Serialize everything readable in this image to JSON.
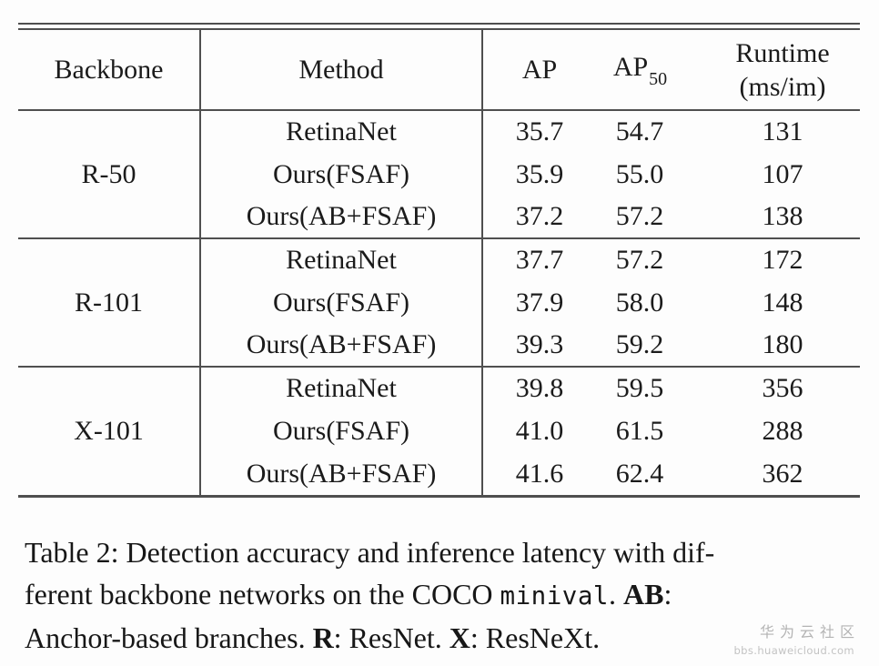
{
  "table": {
    "headers": {
      "backbone": "Backbone",
      "method": "Method",
      "ap": "AP",
      "ap50_base": "AP",
      "ap50_sub": "50",
      "runtime_line1": "Runtime",
      "runtime_line2": "(ms/im)"
    },
    "groups": [
      {
        "backbone": "R-50",
        "rows": [
          {
            "method": "RetinaNet",
            "ap": "35.7",
            "ap50": "54.7",
            "runtime": "131"
          },
          {
            "method": "Ours(FSAF)",
            "ap": "35.9",
            "ap50": "55.0",
            "runtime": "107"
          },
          {
            "method": "Ours(AB+FSAF)",
            "ap": "37.2",
            "ap50": "57.2",
            "runtime": "138"
          }
        ]
      },
      {
        "backbone": "R-101",
        "rows": [
          {
            "method": "RetinaNet",
            "ap": "37.7",
            "ap50": "57.2",
            "runtime": "172"
          },
          {
            "method": "Ours(FSAF)",
            "ap": "37.9",
            "ap50": "58.0",
            "runtime": "148"
          },
          {
            "method": "Ours(AB+FSAF)",
            "ap": "39.3",
            "ap50": "59.2",
            "runtime": "180"
          }
        ]
      },
      {
        "backbone": "X-101",
        "rows": [
          {
            "method": "RetinaNet",
            "ap": "39.8",
            "ap50": "59.5",
            "runtime": "356"
          },
          {
            "method": "Ours(FSAF)",
            "ap": "41.0",
            "ap50": "61.5",
            "runtime": "288"
          },
          {
            "method": "Ours(AB+FSAF)",
            "ap": "41.6",
            "ap50": "62.4",
            "runtime": "362"
          }
        ]
      }
    ]
  },
  "caption": {
    "lines": [
      [
        {
          "text": "Table 2: Detection accuracy and inference latency with dif-",
          "style": "plain"
        }
      ],
      [
        {
          "text": "ferent backbone networks on the COCO ",
          "style": "plain"
        },
        {
          "text": "minival",
          "style": "mono"
        },
        {
          "text": ".  ",
          "style": "plain"
        },
        {
          "text": "AB",
          "style": "bold"
        },
        {
          "text": ":",
          "style": "plain"
        }
      ],
      [
        {
          "text": "Anchor-based branches. ",
          "style": "plain"
        },
        {
          "text": "R",
          "style": "bold"
        },
        {
          "text": ": ResNet. ",
          "style": "plain"
        },
        {
          "text": "X",
          "style": "bold"
        },
        {
          "text": ": ResNeXt.",
          "style": "plain"
        }
      ]
    ]
  },
  "watermark": {
    "title": "华为云社区",
    "url": "bbs.huaweicloud.com"
  },
  "colors": {
    "rule": "#4f4f4f",
    "text": "#1b1b1b",
    "watermark": "#b4b4b4"
  },
  "chart_data": {
    "type": "table",
    "title": "Table 2: Detection accuracy and inference latency with different backbone networks on the COCO minival. AB: Anchor-based branches. R: ResNet. X: ResNeXt.",
    "columns": [
      "Backbone",
      "Method",
      "AP",
      "AP50",
      "Runtime (ms/im)"
    ],
    "rows": [
      [
        "R-50",
        "RetinaNet",
        35.7,
        54.7,
        131
      ],
      [
        "R-50",
        "Ours(FSAF)",
        35.9,
        55.0,
        107
      ],
      [
        "R-50",
        "Ours(AB+FSAF)",
        37.2,
        57.2,
        138
      ],
      [
        "R-101",
        "RetinaNet",
        37.7,
        57.2,
        172
      ],
      [
        "R-101",
        "Ours(FSAF)",
        37.9,
        58.0,
        148
      ],
      [
        "R-101",
        "Ours(AB+FSAF)",
        39.3,
        59.2,
        180
      ],
      [
        "X-101",
        "RetinaNet",
        39.8,
        59.5,
        356
      ],
      [
        "X-101",
        "Ours(FSAF)",
        41.0,
        61.5,
        288
      ],
      [
        "X-101",
        "Ours(AB+FSAF)",
        41.6,
        62.4,
        362
      ]
    ]
  }
}
